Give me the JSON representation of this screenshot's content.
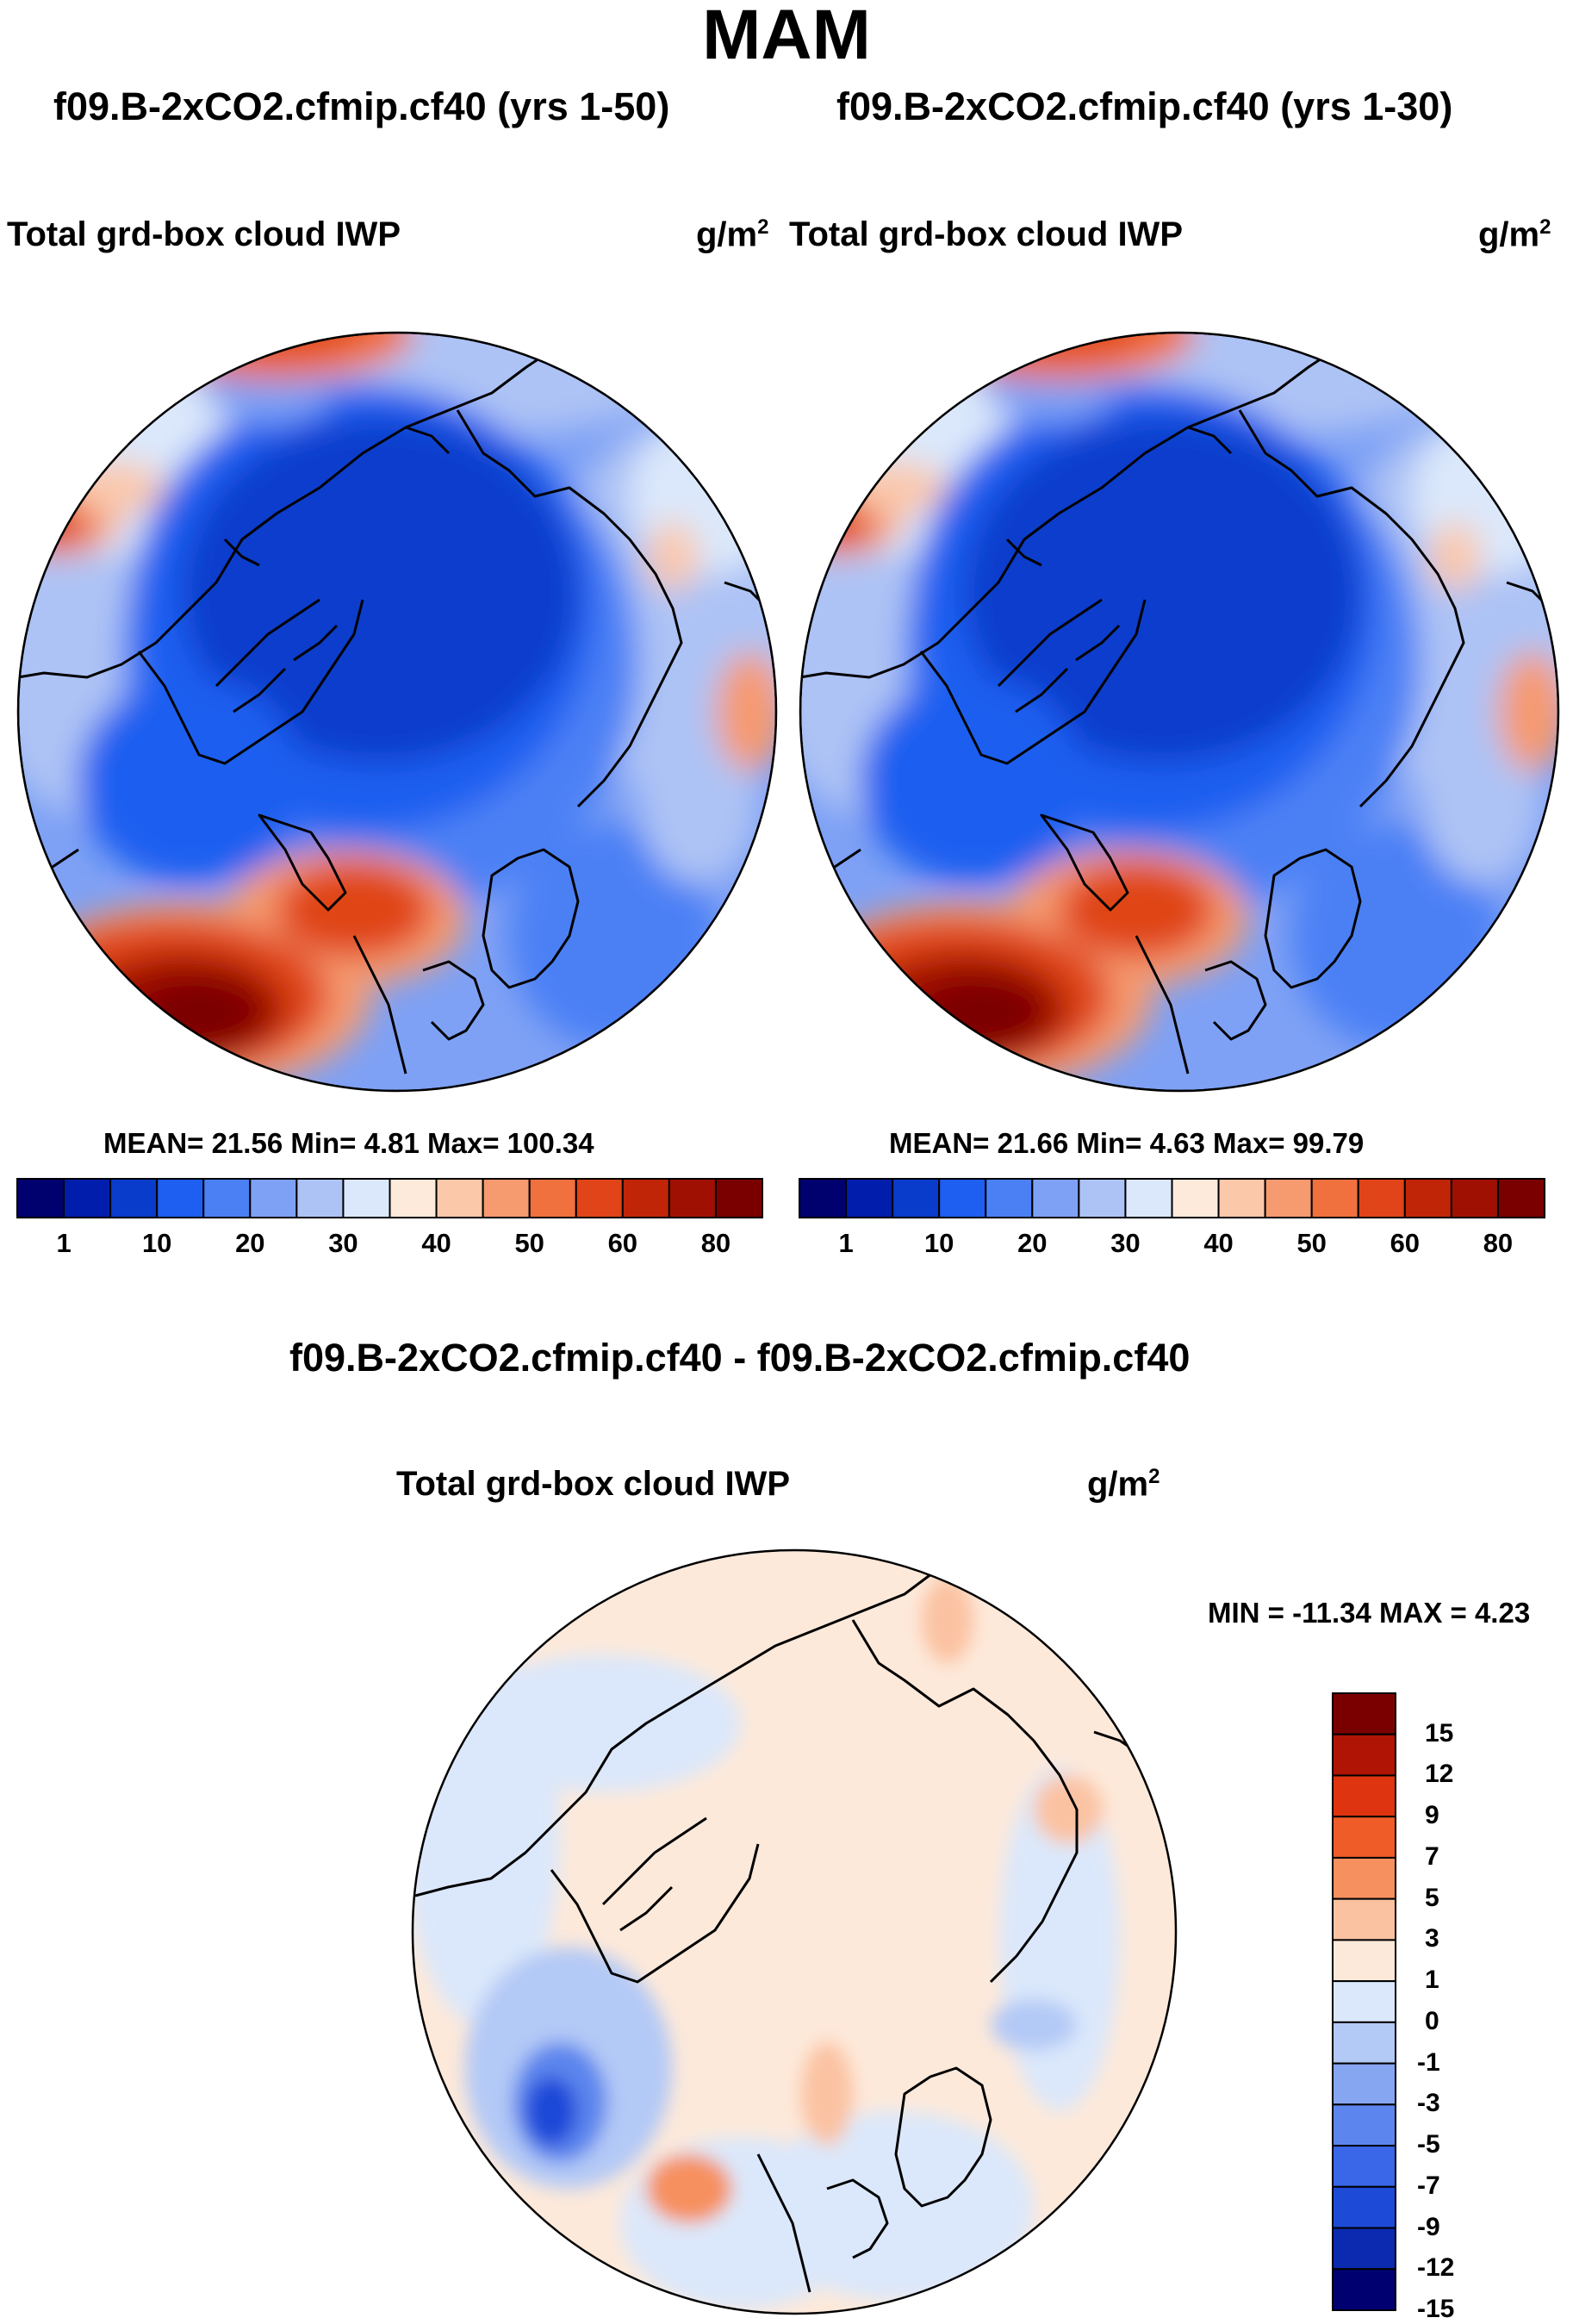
{
  "title": "MAM",
  "panels": [
    {
      "run_title": "f09.B-2xCO2.cfmip.cf40 (yrs 1-50)",
      "field": "Total grd-box cloud IWP",
      "units": "g/m",
      "units_exp": "2",
      "stats": "MEAN=  21.56  Min=   4.81  Max= 100.34"
    },
    {
      "run_title": "f09.B-2xCO2.cfmip.cf40 (yrs 1-30)",
      "field": "Total grd-box cloud IWP",
      "units": "g/m",
      "units_exp": "2",
      "stats": "MEAN=  21.66  Min=   4.63  Max=  99.79"
    }
  ],
  "diff_panel": {
    "run_title": "f09.B-2xCO2.cfmip.cf40 - f09.B-2xCO2.cfmip.cf40",
    "field": "Total grd-box cloud IWP",
    "units": "g/m",
    "units_exp": "2",
    "stats": "MIN = -11.34 MAX =    4.23"
  },
  "colorbar_abs": {
    "colors": [
      "#00006e",
      "#001eab",
      "#0a3ccc",
      "#1e5ef0",
      "#4b80f5",
      "#7ea1f5",
      "#adc3f5",
      "#dbe8fb",
      "#fdeadb",
      "#fbc8aa",
      "#f69a70",
      "#f0703e",
      "#e04418",
      "#c02508",
      "#a01002",
      "#7a0000"
    ],
    "ticks": [
      "1",
      "10",
      "20",
      "30",
      "40",
      "50",
      "60",
      "80"
    ]
  },
  "colorbar_diff": {
    "colors": [
      "#7a0000",
      "#b01405",
      "#de3410",
      "#f05c28",
      "#f6905e",
      "#fbc2a2",
      "#fde9da",
      "#dbe8fb",
      "#b3c9f6",
      "#87a6f2",
      "#5c85ed",
      "#3a66e8",
      "#1e4ad8",
      "#0b2ab0",
      "#000070"
    ],
    "ticks": [
      "15",
      "12",
      "9",
      "7",
      "5",
      "3",
      "1",
      "0",
      "-1",
      "-3",
      "-5",
      "-7",
      "-9",
      "-12",
      "-15"
    ]
  }
}
